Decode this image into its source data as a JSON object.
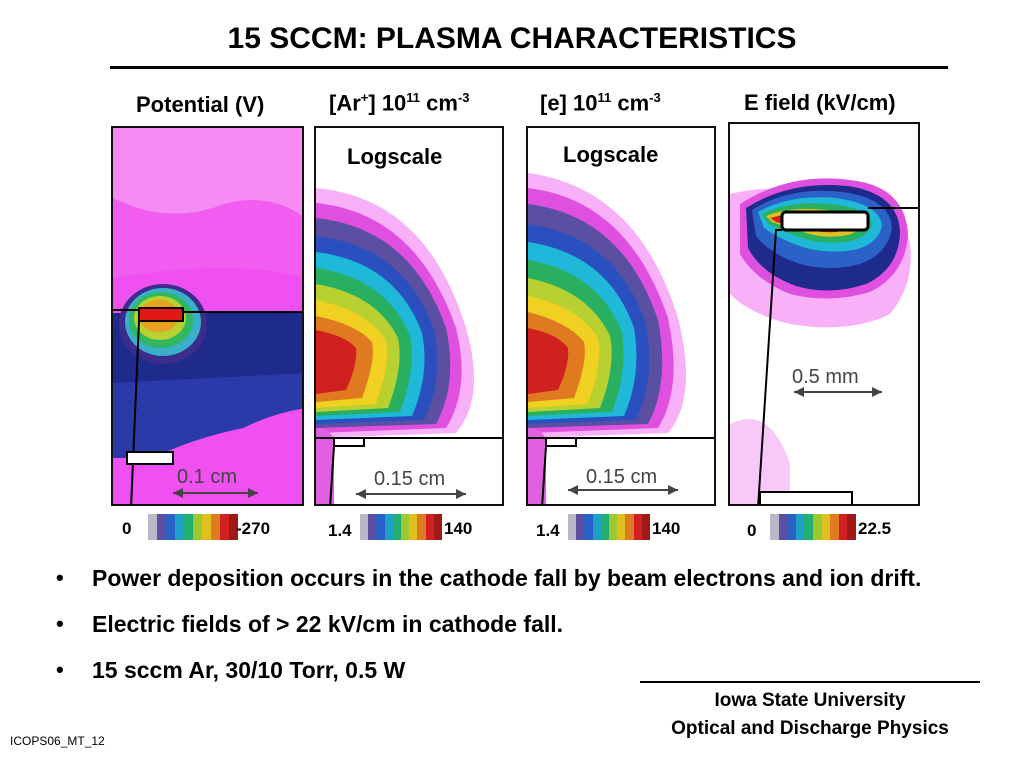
{
  "title": "15 SCCM: PLASMA CHARACTERISTICS",
  "panels": [
    {
      "title": "Potential (V)",
      "logscale": "",
      "scale_bar": "0.1 cm",
      "cbar_min": "0",
      "cbar_max": "-270"
    },
    {
      "title_base": "[Ar",
      "title_sup1": "+",
      "title_mid": "] 10",
      "title_sup2": "11",
      "title_unit": " cm",
      "title_sup3": "-3",
      "logscale": "Logscale",
      "scale_bar": "0.15 cm",
      "cbar_min": "1.4",
      "cbar_max": "140"
    },
    {
      "title_base": "[e] 10",
      "title_sup2": "11",
      "title_unit": " cm",
      "title_sup3": "-3",
      "logscale": "Logscale",
      "scale_bar": "0.15 cm",
      "cbar_min": "1.4",
      "cbar_max": "140"
    },
    {
      "title": "E field (kV/cm)",
      "logscale": "",
      "scale_bar": "0.5 mm",
      "cbar_min": "0",
      "cbar_max": "22.5"
    }
  ],
  "colorbar": [
    "#b8b8c8",
    "#5a4fa0",
    "#2a62c8",
    "#1fa0c8",
    "#22b070",
    "#9cc830",
    "#e0c020",
    "#e07a20",
    "#d02020",
    "#a01818"
  ],
  "bullets": [
    "Power deposition occurs in the cathode fall by beam electrons and ion drift.",
    "Electric fields of > 22 kV/cm in cathode fall.",
    "15 sccm Ar, 30/10 Torr, 0.5 W"
  ],
  "footer": {
    "line1": "Iowa State University",
    "line2": "Optical and Discharge Physics"
  },
  "slide_id": "ICOPS06_MT_12"
}
